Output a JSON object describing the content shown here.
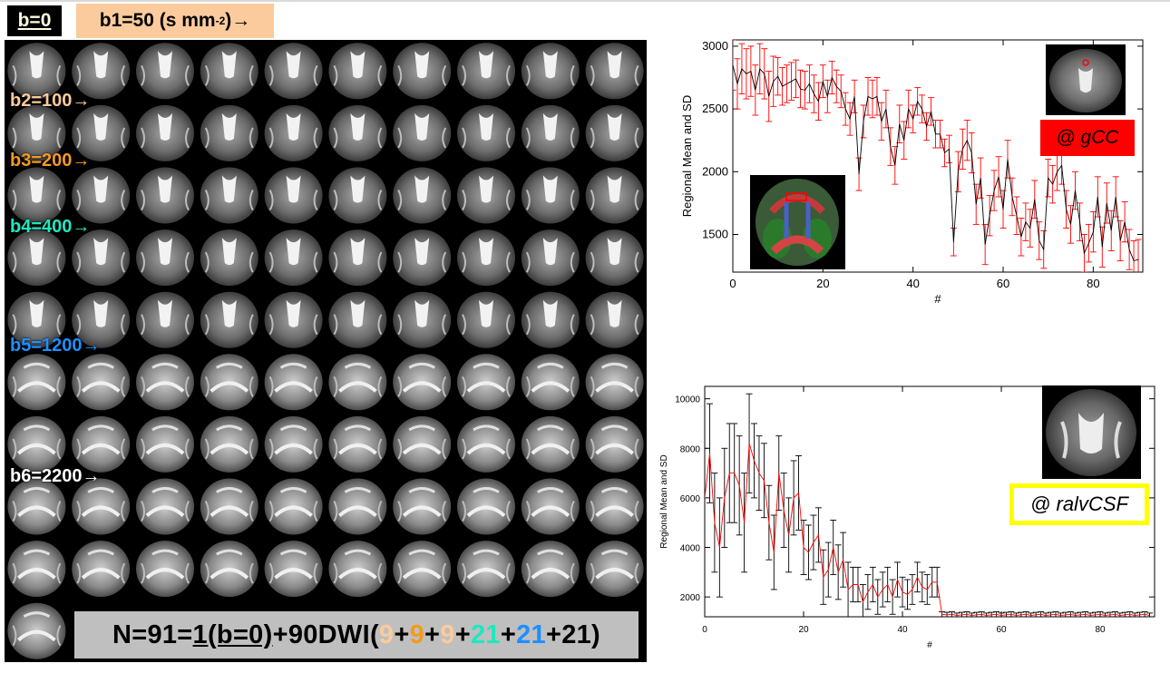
{
  "header": {
    "b0_label": "b=0",
    "b1_label_prefix": "b1=50 (s mm",
    "b1_label_sup": "-2",
    "b1_label_suffix": ")→"
  },
  "mosaic": {
    "grid_columns": 10,
    "total_images": 91,
    "b_labels": [
      {
        "text": "b2=100→",
        "color": "#fbcb9d"
      },
      {
        "text": "b3=200→",
        "color": "#f39a1e"
      },
      {
        "text": "b4=400→",
        "color": "#1fe8c0"
      },
      {
        "text": "b5=1200→",
        "color": "#1e8fff"
      },
      {
        "text": "b6=2200→",
        "color": "#ffffff"
      }
    ],
    "formula": {
      "part1": "N=91=",
      "part2": "1(b=0)",
      "part3": "+90DWI(",
      "n1": "9",
      "plus1": "+",
      "n2": "9",
      "plus2": "+",
      "n3": "9",
      "plus3": "+",
      "n4": "21",
      "plus4": "+",
      "n5": "21",
      "plus5": "+",
      "n6": "21",
      "close": ")",
      "colors": [
        "#fbcb9d",
        "#f39a1e",
        "#fbcb9d",
        "#1fe8c0",
        "#1e8fff",
        "#000000"
      ]
    }
  },
  "chart_data": [
    {
      "type": "line",
      "title": "",
      "xlabel": "#",
      "ylabel": "Regional Mean and SD",
      "xlim": [
        0,
        91
      ],
      "ylim": [
        1200,
        3050
      ],
      "xticks": [
        "0",
        "20",
        "40",
        "60",
        "80"
      ],
      "yticks": [
        "1500",
        "2000",
        "2500",
        "3000"
      ],
      "error_color": "#ff0000",
      "line_color": "#000000",
      "tag": "@ gCC",
      "tag_color": "#ff0000",
      "series": [
        {
          "values": [
            2850,
            2700,
            2820,
            2780,
            2800,
            2650,
            2820,
            2780,
            2600,
            2720,
            2760,
            2680,
            2700,
            2720,
            2740,
            2660,
            2650,
            2700,
            2620,
            2560,
            2720,
            2600,
            2750,
            2680,
            2640,
            2500,
            2420,
            2600,
            1980,
            2400,
            2600,
            2580,
            2600,
            2400,
            2500,
            2200,
            2050,
            2380,
            2250,
            2500,
            2420,
            2560,
            2500,
            2360,
            2480,
            2300,
            2300,
            2150,
            2180,
            1440,
            2000,
            2180,
            2250,
            2150,
            1740,
            1950,
            1420,
            1650,
            1850,
            1960,
            1700,
            2100,
            1800,
            1650,
            1480,
            1600,
            1550,
            1780,
            1450,
            1380,
            1950,
            1900,
            2000,
            2050,
            1700,
            1580,
            1850,
            1600,
            1350,
            1430,
            1520,
            1800,
            1400,
            1750,
            1530,
            1800,
            1450,
            1600,
            1380,
            1290,
            1300
          ],
          "sd": [
            200,
            200,
            200,
            200,
            200,
            200,
            200,
            200,
            200,
            200,
            150,
            150,
            150,
            150,
            150,
            150,
            150,
            150,
            150,
            150,
            130,
            130,
            130,
            130,
            130,
            130,
            130,
            130,
            130,
            130,
            150,
            150,
            150,
            150,
            150,
            150,
            150,
            150,
            150,
            150,
            110,
            110,
            110,
            110,
            110,
            110,
            110,
            110,
            110,
            110,
            160,
            160,
            160,
            160,
            160,
            160,
            160,
            160,
            160,
            160,
            150,
            150,
            150,
            150,
            150,
            150,
            150,
            150,
            150,
            150,
            150,
            150,
            150,
            150,
            150,
            150,
            150,
            150,
            150,
            150,
            160,
            160,
            160,
            160,
            160,
            160,
            160,
            160,
            160,
            160,
            160
          ]
        }
      ]
    },
    {
      "type": "line",
      "title": "",
      "xlabel": "#",
      "ylabel": "Regional Mean and SD",
      "xlim": [
        0,
        91
      ],
      "ylim": [
        1200,
        10500
      ],
      "xticks": [
        "0",
        "20",
        "40",
        "60",
        "80"
      ],
      "yticks": [
        "2000",
        "4000",
        "6000",
        "8000",
        "10000"
      ],
      "error_color": "#000000",
      "line_color": "#ff0000",
      "tag": "@ ralvCSF",
      "tag_color": "#ffff00",
      "series": [
        {
          "values": [
            6000,
            7800,
            5000,
            4000,
            6000,
            7000,
            7000,
            6500,
            5000,
            8200,
            7500,
            7000,
            6700,
            5000,
            3800,
            7000,
            5500,
            4500,
            6000,
            6200,
            4000,
            3800,
            4200,
            4500,
            2800,
            3100,
            4000,
            3000,
            3500,
            2300,
            2500,
            2500,
            1800,
            2200,
            2500,
            2000,
            2300,
            2500,
            2000,
            2700,
            2200,
            2100,
            2300,
            2800,
            2400,
            2300,
            2600,
            2600,
            1300,
            1280,
            1300,
            1250,
            1280,
            1300,
            1250,
            1280,
            1300,
            1250,
            1280,
            1300,
            1250,
            1280,
            1300,
            1250,
            1280,
            1300,
            1250,
            1280,
            1300,
            1250,
            1280,
            1300,
            1250,
            1280,
            1300,
            1250,
            1280,
            1300,
            1250,
            1280,
            1300,
            1250,
            1280,
            1300,
            1250,
            1280,
            1300,
            1250,
            1280,
            1300,
            1250
          ],
          "sd": [
            2000,
            2000,
            2000,
            2000,
            2000,
            2000,
            2000,
            2000,
            2000,
            2000,
            1500,
            1500,
            1500,
            1500,
            1500,
            1500,
            1500,
            1500,
            1500,
            1500,
            1100,
            1100,
            1100,
            1100,
            1100,
            1100,
            1100,
            1100,
            1100,
            1100,
            700,
            700,
            700,
            700,
            700,
            700,
            700,
            700,
            700,
            700,
            600,
            600,
            600,
            600,
            600,
            600,
            600,
            600,
            100,
            100,
            100,
            100,
            100,
            100,
            100,
            100,
            100,
            100,
            100,
            100,
            100,
            100,
            100,
            100,
            100,
            100,
            100,
            100,
            100,
            100,
            100,
            100,
            100,
            100,
            100,
            100,
            100,
            100,
            100,
            100,
            100,
            100,
            100,
            100,
            100,
            100,
            100,
            100,
            100,
            100,
            100
          ]
        }
      ]
    }
  ]
}
